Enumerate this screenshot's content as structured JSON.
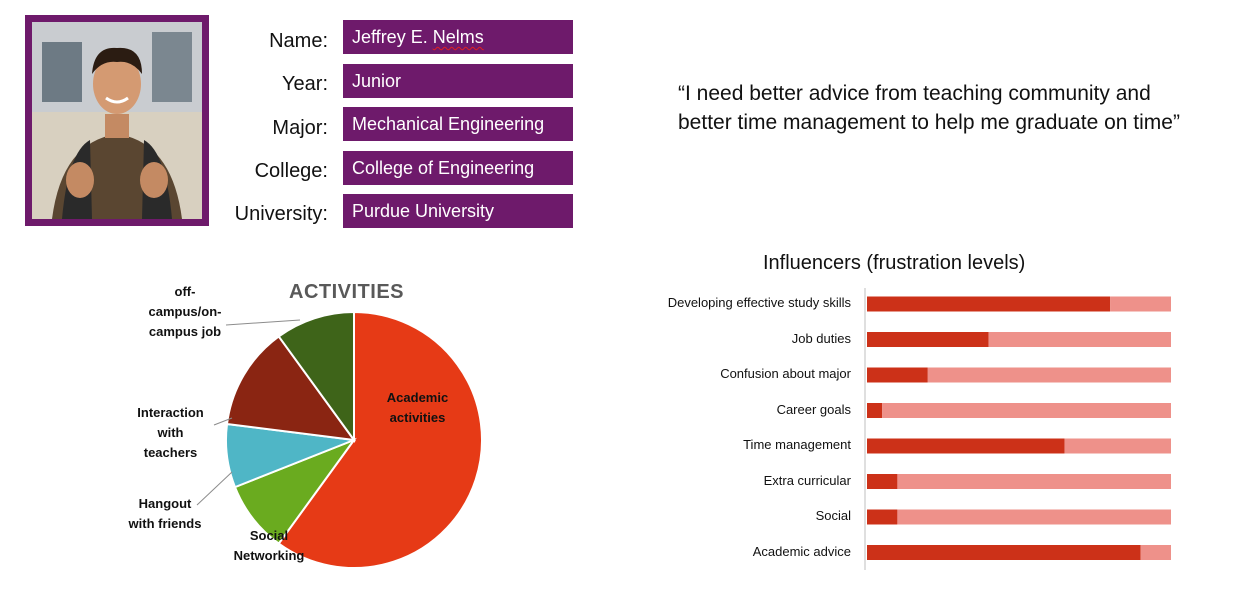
{
  "profile": {
    "fields": [
      {
        "label": "Name:",
        "value": "Jeffrey E. Nelms"
      },
      {
        "label": "Year:",
        "value": "Junior"
      },
      {
        "label": "Major:",
        "value": "Mechanical Engineering"
      },
      {
        "label": "College:",
        "value": "College of Engineering"
      },
      {
        "label": "University:",
        "value": "Purdue University"
      }
    ],
    "accent_color": "#6e1a6b"
  },
  "quote": {
    "line1": "“I need better advice from teaching community and",
    "line2": "better time management to help me graduate on time”"
  },
  "chart_data": [
    {
      "type": "pie",
      "title": "ACTIVITIES",
      "slices": [
        {
          "label": "Academic activities",
          "value": 60,
          "color": "#e63a16"
        },
        {
          "label": "Social Networking",
          "value": 9,
          "color": "#6aab1f"
        },
        {
          "label": "Hangout with friends",
          "value": 8,
          "color": "#4fb6c6"
        },
        {
          "label": "Interaction with teachers",
          "value": 13,
          "color": "#8a2512"
        },
        {
          "label": "off-campus/on-campus job",
          "value": 10,
          "color": "#3e6419"
        }
      ]
    },
    {
      "type": "bar",
      "orientation": "horizontal",
      "stacked": true,
      "title": "Influencers (frustration levels)",
      "categories": [
        "Developing effective study skills",
        "Job duties",
        "Confusion about major",
        "Career goals",
        "Time management",
        "Extra curricular",
        "Social",
        "Academic advice"
      ],
      "series": [
        {
          "values": [
            80,
            40,
            20,
            5,
            65,
            10,
            10,
            90
          ],
          "color": "#cc3118"
        },
        {
          "values": [
            20,
            60,
            80,
            95,
            35,
            90,
            90,
            10
          ],
          "color": "#ee918a"
        }
      ],
      "xlim": [
        0,
        100
      ]
    }
  ]
}
